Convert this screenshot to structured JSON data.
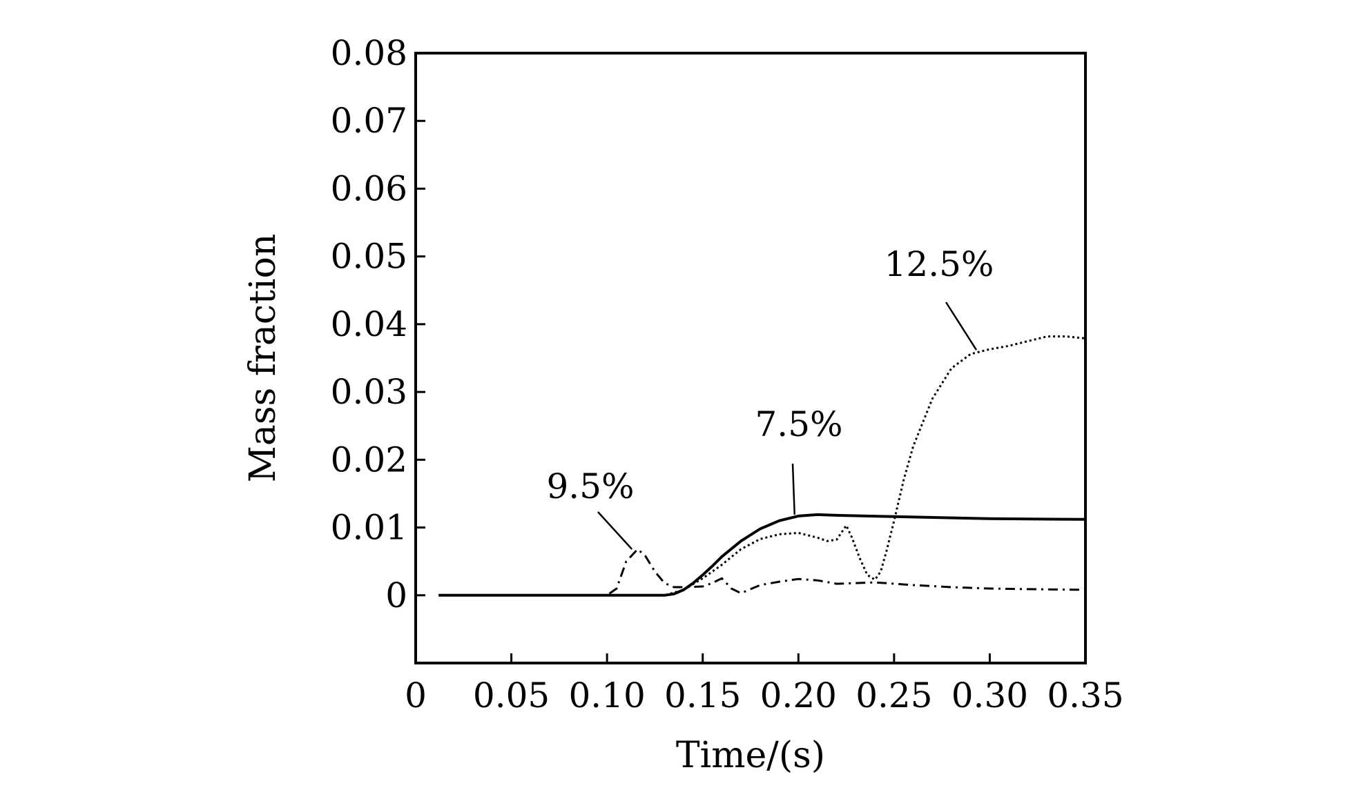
{
  "chart_data": {
    "type": "line",
    "title": "",
    "xlabel": "Time/(s)",
    "ylabel": "Mass fraction",
    "xlim": [
      0,
      0.35
    ],
    "ylim": [
      -0.01,
      0.08
    ],
    "grid": false,
    "x_tick_labels": [
      "0",
      "0.05",
      "0.10",
      "0.15",
      "0.20",
      "0.25",
      "0.30",
      "0.35"
    ],
    "x_ticks": [
      0,
      0.05,
      0.1,
      0.15,
      0.2,
      0.25,
      0.3,
      0.35
    ],
    "y_tick_labels": [
      "0",
      "0.01",
      "0.02",
      "0.03",
      "0.04",
      "0.05",
      "0.06",
      "0.07",
      "0.08"
    ],
    "y_ticks": [
      0,
      0.01,
      0.02,
      0.03,
      0.04,
      0.05,
      0.06,
      0.07,
      0.08
    ],
    "series": [
      {
        "name": "7.5%",
        "style": "solid",
        "x": [
          0.012,
          0.1,
          0.13,
          0.135,
          0.14,
          0.145,
          0.15,
          0.155,
          0.16,
          0.17,
          0.18,
          0.19,
          0.2,
          0.21,
          0.22,
          0.25,
          0.3,
          0.35
        ],
        "y": [
          0,
          0,
          0,
          0.0002,
          0.0008,
          0.0018,
          0.003,
          0.0043,
          0.0057,
          0.008,
          0.0098,
          0.011,
          0.0117,
          0.0119,
          0.0118,
          0.0116,
          0.0113,
          0.0112
        ]
      },
      {
        "name": "9.5%",
        "style": "dashdot",
        "x": [
          0.012,
          0.1,
          0.105,
          0.11,
          0.116,
          0.12,
          0.125,
          0.13,
          0.135,
          0.14,
          0.15,
          0.155,
          0.16,
          0.165,
          0.17,
          0.18,
          0.19,
          0.2,
          0.21,
          0.22,
          0.24,
          0.26,
          0.28,
          0.3,
          0.32,
          0.35
        ],
        "y": [
          0,
          0,
          0.001,
          0.005,
          0.0068,
          0.0058,
          0.0035,
          0.0018,
          0.0012,
          0.0012,
          0.0013,
          0.0018,
          0.0025,
          0.001,
          0.0003,
          0.0015,
          0.002,
          0.0024,
          0.0022,
          0.0017,
          0.0019,
          0.0015,
          0.0012,
          0.001,
          0.0009,
          0.0008
        ]
      },
      {
        "name": "12.5%",
        "style": "dotted",
        "x": [
          0.012,
          0.13,
          0.14,
          0.15,
          0.16,
          0.17,
          0.18,
          0.19,
          0.2,
          0.21,
          0.215,
          0.22,
          0.225,
          0.228,
          0.232,
          0.236,
          0.24,
          0.243,
          0.246,
          0.25,
          0.255,
          0.26,
          0.27,
          0.28,
          0.29,
          0.3,
          0.31,
          0.32,
          0.33,
          0.34,
          0.35
        ],
        "y": [
          0,
          0,
          0.0008,
          0.0025,
          0.0045,
          0.0068,
          0.0083,
          0.009,
          0.0092,
          0.0085,
          0.008,
          0.0082,
          0.0103,
          0.0085,
          0.0055,
          0.003,
          0.0023,
          0.0035,
          0.0065,
          0.011,
          0.017,
          0.022,
          0.029,
          0.0335,
          0.0356,
          0.0363,
          0.0368,
          0.0375,
          0.0382,
          0.0382,
          0.0379
        ]
      }
    ],
    "annotations": [
      {
        "text": "12.5%",
        "series": "12.5%",
        "at_x": 0.293,
        "at_y": 0.0362
      },
      {
        "text": "7.5%",
        "series": "7.5%",
        "at_x": 0.198,
        "at_y": 0.0119
      },
      {
        "text": "9.5%",
        "series": "9.5%",
        "at_x": 0.113,
        "at_y": 0.0068
      }
    ]
  }
}
